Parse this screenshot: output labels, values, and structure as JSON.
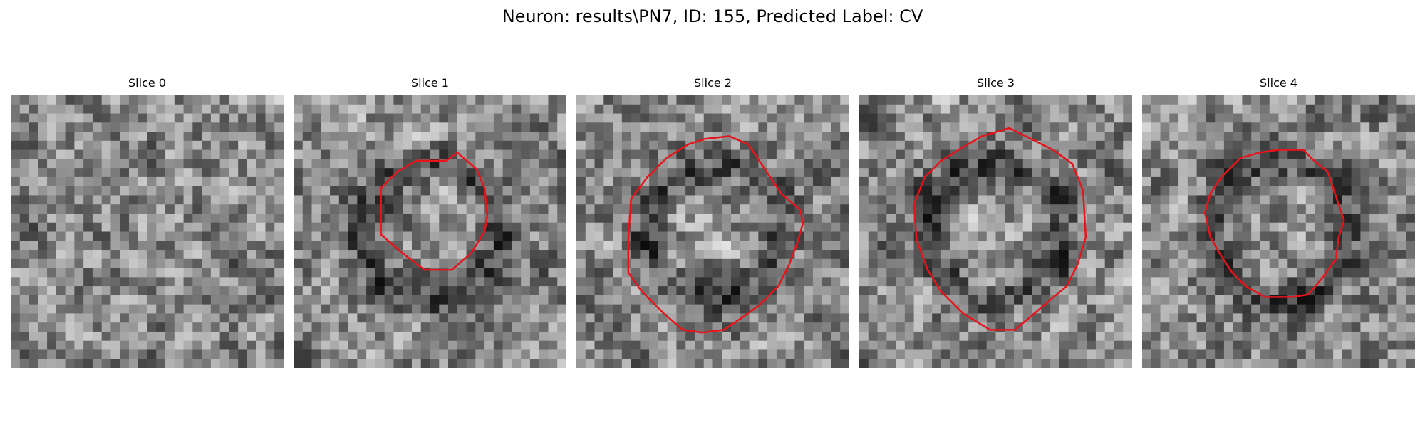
{
  "title": "Neuron: results\\PN7, ID: 155, Predicted Label: CV",
  "panels": [
    {
      "label": "Slice 0",
      "contour": []
    },
    {
      "label": "Slice 1",
      "contour": [
        [
          0.56,
          0.24
        ],
        [
          0.6,
          0.21
        ],
        [
          0.67,
          0.27
        ],
        [
          0.7,
          0.34
        ],
        [
          0.71,
          0.44
        ],
        [
          0.7,
          0.5
        ],
        [
          0.65,
          0.58
        ],
        [
          0.58,
          0.64
        ],
        [
          0.48,
          0.64
        ],
        [
          0.4,
          0.58
        ],
        [
          0.32,
          0.51
        ],
        [
          0.32,
          0.34
        ],
        [
          0.38,
          0.28
        ],
        [
          0.45,
          0.24
        ]
      ]
    },
    {
      "label": "Slice 2",
      "contour": [
        [
          0.47,
          0.16
        ],
        [
          0.56,
          0.15
        ],
        [
          0.63,
          0.18
        ],
        [
          0.69,
          0.27
        ],
        [
          0.75,
          0.36
        ],
        [
          0.82,
          0.42
        ],
        [
          0.83,
          0.47
        ],
        [
          0.81,
          0.54
        ],
        [
          0.78,
          0.62
        ],
        [
          0.74,
          0.7
        ],
        [
          0.67,
          0.77
        ],
        [
          0.6,
          0.82
        ],
        [
          0.54,
          0.86
        ],
        [
          0.46,
          0.87
        ],
        [
          0.39,
          0.86
        ],
        [
          0.32,
          0.8
        ],
        [
          0.24,
          0.72
        ],
        [
          0.19,
          0.65
        ],
        [
          0.19,
          0.53
        ],
        [
          0.2,
          0.38
        ],
        [
          0.26,
          0.3
        ],
        [
          0.33,
          0.23
        ],
        [
          0.41,
          0.18
        ]
      ]
    },
    {
      "label": "Slice 3",
      "contour": [
        [
          0.45,
          0.15
        ],
        [
          0.55,
          0.12
        ],
        [
          0.63,
          0.16
        ],
        [
          0.71,
          0.2
        ],
        [
          0.78,
          0.25
        ],
        [
          0.82,
          0.35
        ],
        [
          0.83,
          0.52
        ],
        [
          0.8,
          0.62
        ],
        [
          0.76,
          0.7
        ],
        [
          0.7,
          0.75
        ],
        [
          0.63,
          0.81
        ],
        [
          0.57,
          0.86
        ],
        [
          0.48,
          0.86
        ],
        [
          0.38,
          0.8
        ],
        [
          0.3,
          0.72
        ],
        [
          0.25,
          0.64
        ],
        [
          0.21,
          0.53
        ],
        [
          0.2,
          0.4
        ],
        [
          0.24,
          0.3
        ],
        [
          0.3,
          0.24
        ],
        [
          0.38,
          0.19
        ]
      ]
    },
    {
      "label": "Slice 4",
      "contour": [
        [
          0.5,
          0.2
        ],
        [
          0.59,
          0.2
        ],
        [
          0.63,
          0.24
        ],
        [
          0.68,
          0.28
        ],
        [
          0.7,
          0.34
        ],
        [
          0.74,
          0.46
        ],
        [
          0.72,
          0.52
        ],
        [
          0.71,
          0.6
        ],
        [
          0.66,
          0.67
        ],
        [
          0.61,
          0.73
        ],
        [
          0.55,
          0.74
        ],
        [
          0.45,
          0.74
        ],
        [
          0.38,
          0.7
        ],
        [
          0.33,
          0.65
        ],
        [
          0.29,
          0.59
        ],
        [
          0.25,
          0.52
        ],
        [
          0.23,
          0.43
        ],
        [
          0.25,
          0.36
        ],
        [
          0.29,
          0.3
        ],
        [
          0.36,
          0.23
        ],
        [
          0.43,
          0.21
        ]
      ]
    }
  ]
}
